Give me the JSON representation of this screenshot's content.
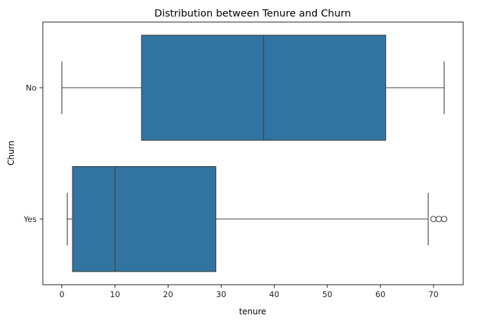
{
  "chart_data": {
    "type": "box",
    "orientation": "horizontal",
    "title": "Distribution between Tenure and Churn",
    "xlabel": "tenure",
    "ylabel": "Churn",
    "xlim": [
      -3.6,
      75.6
    ],
    "xticks": [
      0,
      10,
      20,
      30,
      40,
      50,
      60,
      70
    ],
    "categories": [
      "No",
      "Yes"
    ],
    "boxes": [
      {
        "category": "No",
        "whisker_low": 0,
        "q1": 15,
        "median": 38,
        "q3": 61,
        "whisker_high": 72,
        "outliers": []
      },
      {
        "category": "Yes",
        "whisker_low": 1,
        "q1": 2,
        "median": 10,
        "q3": 29,
        "whisker_high": 69,
        "outliers": [
          70,
          71,
          72
        ]
      }
    ],
    "grid": false,
    "legend": "none",
    "colors": {
      "box_fill": "#3274a1",
      "line": "#3d3d3d",
      "axis": "#000000"
    }
  }
}
